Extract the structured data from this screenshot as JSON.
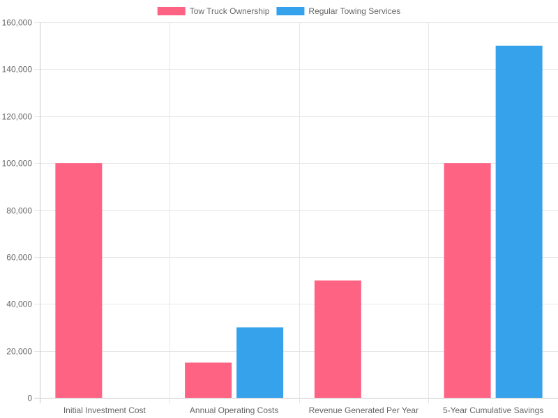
{
  "chart_data": {
    "type": "bar",
    "categories": [
      "Initial Investment Cost",
      "Annual Operating Costs",
      "Revenue Generated Per Year",
      "5-Year Cumulative Savings"
    ],
    "series": [
      {
        "name": "Tow Truck Ownership",
        "values": [
          100000,
          15000,
          50000,
          100000
        ],
        "color": "#ff6384"
      },
      {
        "name": "Regular Towing Services",
        "values": [
          0,
          30000,
          0,
          150000
        ],
        "color": "#36a2eb"
      }
    ],
    "ylim": [
      0,
      160000
    ],
    "yticks": [
      "0",
      "20,000",
      "40,000",
      "60,000",
      "80,000",
      "100,000",
      "120,000",
      "140,000",
      "160,000"
    ],
    "ytick_values": [
      0,
      20000,
      40000,
      60000,
      80000,
      100000,
      120000,
      140000,
      160000
    ],
    "grid": true,
    "legend_position": "top-center"
  }
}
